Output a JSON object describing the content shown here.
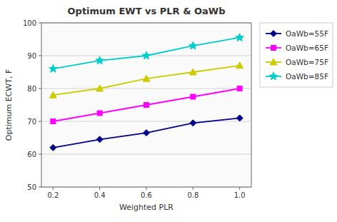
{
  "chart_data": {
    "type": "line",
    "title": "Optimum EWT vs PLR & OaWb",
    "xlabel": "Weighted PLR",
    "ylabel": "Optimum ECWT, F",
    "x": [
      0.2,
      0.4,
      0.6,
      0.8,
      1.0
    ],
    "xlim": [
      0.15,
      1.05
    ],
    "ylim": [
      50,
      100
    ],
    "xticks": [
      0.2,
      0.4,
      0.6,
      0.8,
      {
        "value": 1.0,
        "label": "1.0"
      }
    ],
    "yticks": [
      50,
      60,
      70,
      80,
      90,
      100
    ],
    "grid": "y",
    "legend": "right",
    "series": [
      {
        "name": "OaWb=55F",
        "color": "#00008B",
        "marker": "diamond",
        "values": [
          62.0,
          64.5,
          66.5,
          69.5,
          71.0
        ]
      },
      {
        "name": "OaWb=65F",
        "color": "#FF00FF",
        "marker": "square",
        "values": [
          70.0,
          72.5,
          75.0,
          77.5,
          80.0
        ]
      },
      {
        "name": "OaWb=75F",
        "color": "#CCCC00",
        "marker": "triangle",
        "values": [
          78.0,
          80.0,
          83.0,
          85.0,
          87.0
        ]
      },
      {
        "name": "OaWb=85F",
        "color": "#00CCCC",
        "marker": "star",
        "values": [
          86.0,
          88.5,
          90.0,
          93.0,
          95.5
        ]
      }
    ]
  }
}
